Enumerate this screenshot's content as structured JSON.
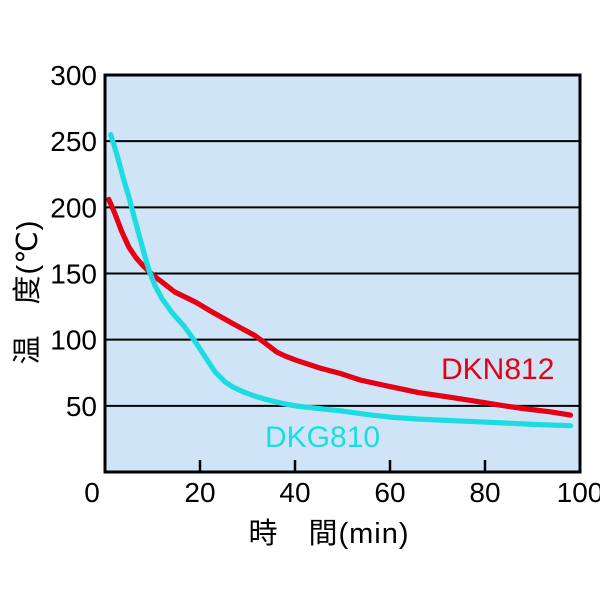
{
  "chart_data": {
    "type": "line",
    "title": "",
    "xlabel": "時　間(min)",
    "ylabel": "温　度(℃)",
    "x_unit": "min",
    "y_unit": "℃",
    "xlim": [
      0,
      100
    ],
    "ylim": [
      0,
      300
    ],
    "x_ticks": [
      0,
      20,
      40,
      60,
      80,
      100
    ],
    "y_ticks": [
      300,
      250,
      200,
      150,
      100,
      50
    ],
    "grid": "horizontal-only",
    "legend_position": "inline-annotations",
    "plot_background": "#cfe5f7",
    "axis_color": "#000000",
    "series": [
      {
        "name": "DKN812",
        "color": "#e60014",
        "points": [
          [
            0.8,
            206
          ],
          [
            2,
            196
          ],
          [
            3.5,
            182
          ],
          [
            5,
            170
          ],
          [
            6.5,
            162
          ],
          [
            8,
            156
          ],
          [
            10,
            149
          ],
          [
            12,
            143.5
          ],
          [
            14.7,
            136
          ],
          [
            19,
            128.5
          ],
          [
            23,
            120
          ],
          [
            27.5,
            111
          ],
          [
            31.6,
            103
          ],
          [
            33.5,
            98
          ],
          [
            36.2,
            90.5
          ],
          [
            38,
            87.5
          ],
          [
            40.2,
            84.5
          ],
          [
            45.3,
            78.5
          ],
          [
            49.5,
            74.5
          ],
          [
            53.7,
            69.5
          ],
          [
            60,
            64.5
          ],
          [
            66,
            60
          ],
          [
            72.6,
            56.5
          ],
          [
            78,
            53.5
          ],
          [
            83.2,
            50.5
          ],
          [
            88,
            48
          ],
          [
            93.7,
            45.5
          ],
          [
            98,
            43
          ]
        ]
      },
      {
        "name": "DKG810",
        "color": "#1cdce2",
        "points": [
          [
            1.2,
            255
          ],
          [
            2.5,
            240
          ],
          [
            3.7,
            224
          ],
          [
            5,
            208
          ],
          [
            6.2,
            192
          ],
          [
            7.4,
            176
          ],
          [
            8.4,
            163
          ],
          [
            9.3,
            152
          ],
          [
            10.5,
            141
          ],
          [
            12,
            131
          ],
          [
            14,
            121
          ],
          [
            16.8,
            109.5
          ],
          [
            18.9,
            99
          ],
          [
            21.1,
            87
          ],
          [
            23.2,
            75.5
          ],
          [
            25.3,
            68
          ],
          [
            27,
            64
          ],
          [
            29.5,
            60
          ],
          [
            31.6,
            57.3
          ],
          [
            33.7,
            55
          ],
          [
            36,
            53
          ],
          [
            38.5,
            51
          ],
          [
            41,
            49.5
          ],
          [
            45,
            48
          ],
          [
            50,
            46
          ],
          [
            55,
            43.5
          ],
          [
            60,
            41.5
          ],
          [
            66,
            40
          ],
          [
            72,
            39
          ],
          [
            78,
            38
          ],
          [
            84,
            37
          ],
          [
            90,
            36
          ],
          [
            98,
            35
          ]
        ]
      }
    ]
  }
}
